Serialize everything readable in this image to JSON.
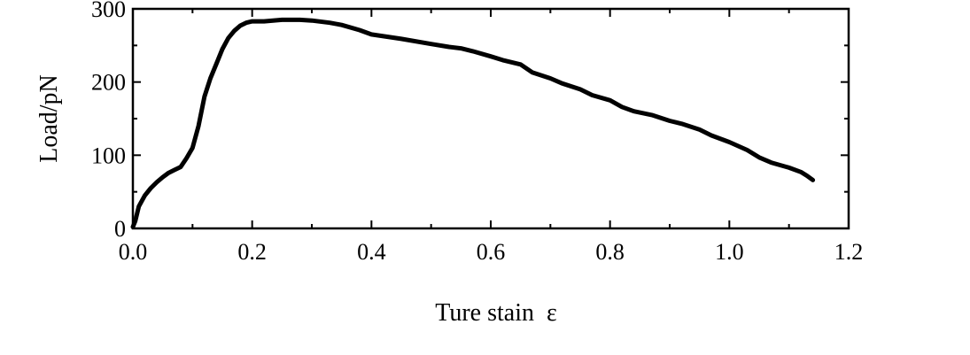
{
  "chart_data": {
    "type": "line",
    "title": "",
    "xlabel": "Ture stain  ε",
    "ylabel": "Load/pN",
    "xlim": [
      0.0,
      1.2
    ],
    "ylim": [
      0,
      300
    ],
    "xticks": [
      0.0,
      0.2,
      0.4,
      0.6,
      0.8,
      1.0,
      1.2
    ],
    "xtick_labels": [
      "0.0",
      "0.2",
      "0.4",
      "0.6",
      "0.8",
      "1.0",
      "1.2"
    ],
    "yticks": [
      0,
      100,
      200,
      300
    ],
    "ytick_labels": [
      "0",
      "100",
      "200",
      "300"
    ],
    "grid": false,
    "legend": "none",
    "line_color": "#000000",
    "series": [
      {
        "x": [
          0.0,
          0.004,
          0.01,
          0.02,
          0.03,
          0.04,
          0.05,
          0.06,
          0.07,
          0.08,
          0.09,
          0.1,
          0.11,
          0.12,
          0.13,
          0.14,
          0.15,
          0.16,
          0.17,
          0.18,
          0.19,
          0.2,
          0.22,
          0.25,
          0.28,
          0.3,
          0.33,
          0.35,
          0.38,
          0.4,
          0.45,
          0.5,
          0.53,
          0.55,
          0.57,
          0.6,
          0.62,
          0.65,
          0.67,
          0.7,
          0.72,
          0.75,
          0.77,
          0.8,
          0.82,
          0.84,
          0.87,
          0.9,
          0.92,
          0.95,
          0.97,
          1.0,
          1.03,
          1.05,
          1.07,
          1.1,
          1.12,
          1.13,
          1.14
        ],
        "y": [
          2,
          10,
          30,
          45,
          55,
          63,
          70,
          76,
          80,
          84,
          96,
          110,
          140,
          180,
          205,
          225,
          245,
          260,
          270,
          277,
          281,
          283,
          283,
          285,
          285,
          284,
          281,
          278,
          271,
          265,
          259,
          252,
          248,
          246,
          242,
          235,
          230,
          224,
          213,
          205,
          198,
          190,
          182,
          175,
          166,
          160,
          155,
          147,
          143,
          135,
          127,
          118,
          107,
          97,
          90,
          83,
          77,
          72,
          66
        ]
      }
    ]
  }
}
